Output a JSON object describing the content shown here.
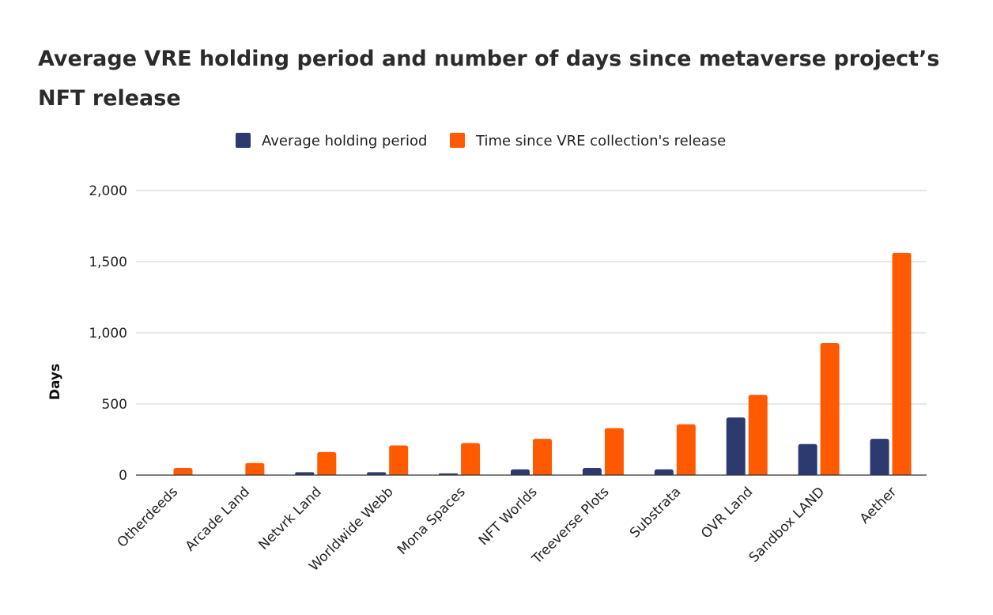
{
  "chart_data": {
    "type": "bar",
    "title": "Average VRE holding period and number of days since metaverse project’s NFT release",
    "xlabel": "",
    "ylabel": "Days",
    "ylim": [
      0,
      2000
    ],
    "yticks": [
      0,
      500,
      1000,
      1500,
      2000
    ],
    "ytick_labels": [
      "0",
      "500",
      "1,000",
      "1,500",
      "2,000"
    ],
    "grid": true,
    "legend_position": "top-center",
    "categories": [
      "Otherdeeds",
      "Arcade Land",
      "Netvrk Land",
      "Worldwide Webb",
      "Mona Spaces",
      "NFT Worlds",
      "Treeverse Plots",
      "Substrata",
      "OVR Land",
      "Sandbox LAND",
      "Aether"
    ],
    "series": [
      {
        "name": "Average holding period",
        "color": "#2c3a70",
        "values": [
          0,
          0,
          20,
          20,
          12,
          40,
          50,
          40,
          405,
          218,
          255
        ]
      },
      {
        "name": "Time since VRE collection's release",
        "color": "#ff5a00",
        "values": [
          50,
          85,
          162,
          208,
          225,
          255,
          330,
          357,
          563,
          928,
          1562
        ]
      }
    ]
  }
}
